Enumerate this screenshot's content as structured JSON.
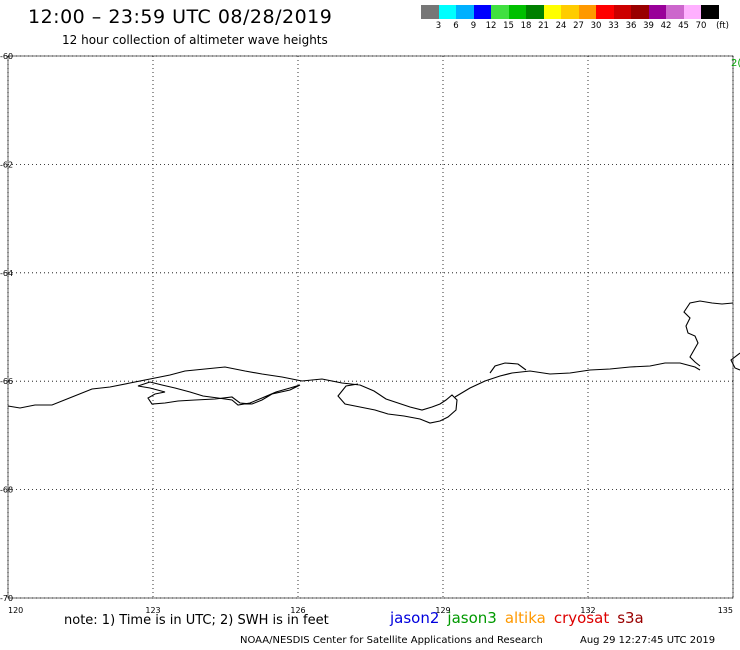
{
  "header": {
    "title": "12:00 – 23:59 UTC 08/28/2019",
    "subtitle": "12 hour collection of altimeter wave heights"
  },
  "colorbar": {
    "colors": [
      "#777777",
      "#00ffff",
      "#00b0ff",
      "#0000ff",
      "#40e040",
      "#00c000",
      "#008000",
      "#ffff00",
      "#ffcc00",
      "#ff9900",
      "#ff0000",
      "#cc0000",
      "#990000",
      "#990099",
      "#cc66cc",
      "#ffb0ff",
      "#000000"
    ],
    "labels": [
      "3",
      "6",
      "9",
      "12",
      "15",
      "18",
      "21",
      "24",
      "27",
      "30",
      "33",
      "36",
      "39",
      "42",
      "45",
      "70",
      "(ft)"
    ]
  },
  "map": {
    "lat_range": [
      -70,
      -60
    ],
    "lon_range": [
      120,
      135
    ],
    "lat_ticks": [
      "-60",
      "-62",
      "-64",
      "-66",
      "-68",
      "-70"
    ],
    "lon_ticks": [
      "120",
      "123",
      "126",
      "129",
      "132",
      "135"
    ],
    "gridlines": true,
    "corner_mark": "2("
  },
  "footer": {
    "note": "note: 1) Time is in UTC; 2) SWH is in feet",
    "satellites": [
      {
        "name": "jason2",
        "color": "#0000dd"
      },
      {
        "name": "jason3",
        "color": "#009900"
      },
      {
        "name": "altika",
        "color": "#ff9900"
      },
      {
        "name": "cryosat",
        "color": "#dd0000"
      },
      {
        "name": "s3a",
        "color": "#990000"
      }
    ],
    "credit": "NOAA/NESDIS Center for Satellite Applications and Research",
    "timestamp": "Aug 29 12:27:45 UTC 2019"
  }
}
